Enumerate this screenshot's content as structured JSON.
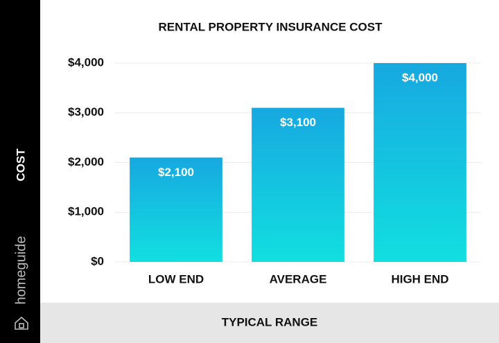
{
  "chart_data": {
    "type": "bar",
    "title": "RENTAL PROPERTY INSURANCE COST",
    "y_label": "COST",
    "x_label": "TYPICAL RANGE",
    "brand": "homeguide",
    "categories": [
      "LOW END",
      "AVERAGE",
      "HIGH END"
    ],
    "values": [
      2100,
      3100,
      4000
    ],
    "value_labels": [
      "$2,100",
      "$3,100",
      "$4,000"
    ],
    "color": "#15b5e3",
    "ylim": [
      0,
      4000
    ],
    "yticks": [
      {
        "value": 0,
        "label": "$0"
      },
      {
        "value": 1000,
        "label": "$1,000"
      },
      {
        "value": 2000,
        "label": "$2,000"
      },
      {
        "value": 3000,
        "label": "$3,000"
      },
      {
        "value": 4000,
        "label": "$4,000"
      }
    ],
    "grid": true
  }
}
